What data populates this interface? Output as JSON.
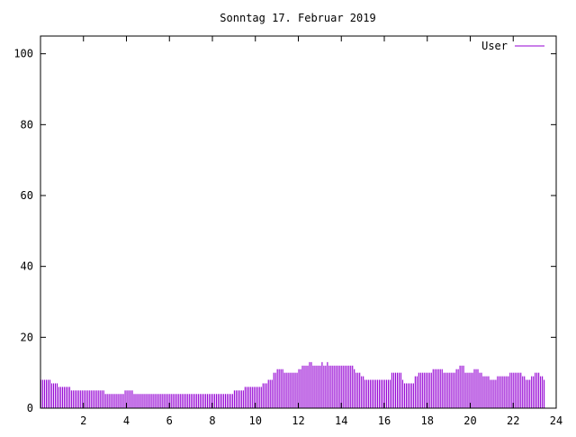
{
  "chart_data": {
    "type": "bar",
    "title": "Sonntag 17. Februar 2019",
    "xlabel": "",
    "ylabel": "",
    "xlim": [
      0,
      24
    ],
    "ylim": [
      0,
      105
    ],
    "x_ticks": [
      2,
      4,
      6,
      8,
      10,
      12,
      14,
      16,
      18,
      20,
      22,
      24
    ],
    "y_ticks": [
      0,
      20,
      40,
      60,
      80,
      100
    ],
    "grid": false,
    "legend_position": "top-right",
    "series": [
      {
        "name": "User",
        "color": "#9400d3",
        "x_interval_minutes": 5,
        "values": [
          8,
          8,
          8,
          8,
          8,
          8,
          7,
          7,
          7,
          7,
          6,
          6,
          6,
          6,
          6,
          6,
          6,
          5,
          5,
          5,
          5,
          5,
          5,
          5,
          5,
          5,
          5,
          5,
          5,
          5,
          5,
          5,
          5,
          5,
          5,
          5,
          4,
          4,
          4,
          4,
          4,
          4,
          4,
          4,
          4,
          4,
          4,
          5,
          5,
          5,
          5,
          5,
          4,
          4,
          4,
          4,
          4,
          4,
          4,
          4,
          4,
          4,
          4,
          4,
          4,
          4,
          4,
          4,
          4,
          4,
          4,
          4,
          4,
          4,
          4,
          4,
          4,
          4,
          4,
          4,
          4,
          4,
          4,
          4,
          4,
          4,
          4,
          4,
          4,
          4,
          4,
          4,
          4,
          4,
          4,
          4,
          4,
          4,
          4,
          4,
          4,
          4,
          4,
          4,
          4,
          4,
          4,
          4,
          5,
          5,
          5,
          5,
          5,
          5,
          6,
          6,
          6,
          6,
          6,
          6,
          6,
          6,
          6,
          6,
          7,
          7,
          7,
          8,
          8,
          8,
          10,
          10,
          11,
          11,
          11,
          11,
          10,
          10,
          10,
          10,
          10,
          10,
          10,
          10,
          11,
          11,
          12,
          12,
          12,
          12,
          13,
          13,
          12,
          12,
          12,
          12,
          12,
          13,
          12,
          12,
          13,
          12,
          12,
          12,
          12,
          12,
          12,
          12,
          12,
          12,
          12,
          12,
          12,
          12,
          12,
          11,
          10,
          10,
          10,
          9,
          9,
          8,
          8,
          8,
          8,
          8,
          8,
          8,
          8,
          8,
          8,
          8,
          8,
          8,
          8,
          8,
          10,
          10,
          10,
          10,
          10,
          10,
          8,
          7,
          7,
          7,
          7,
          7,
          7,
          9,
          9,
          10,
          10,
          10,
          10,
          10,
          10,
          10,
          10,
          11,
          11,
          11,
          11,
          11,
          11,
          10,
          10,
          10,
          10,
          10,
          10,
          10,
          11,
          11,
          12,
          12,
          12,
          10,
          10,
          10,
          10,
          10,
          11,
          11,
          11,
          10,
          10,
          9,
          9,
          9,
          9,
          8,
          8,
          8,
          8,
          9,
          9,
          9,
          9,
          9,
          9,
          9,
          10,
          10,
          10,
          10,
          10,
          10,
          10,
          9,
          9,
          8,
          8,
          8,
          9,
          9,
          10,
          10,
          10,
          9,
          9,
          8
        ]
      }
    ]
  }
}
